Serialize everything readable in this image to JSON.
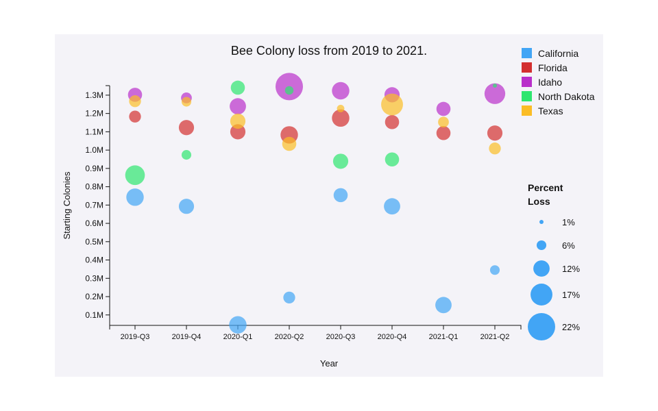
{
  "chart_data": {
    "type": "scatter",
    "subtype": "bubble",
    "title": "Bee Colony loss from 2019 to 2021.",
    "xlabel": "Year",
    "ylabel": "Starting Colonies",
    "categories": [
      "2019-Q3",
      "2019-Q4",
      "2020-Q1",
      "2020-Q2",
      "2020-Q3",
      "2020-Q4",
      "2021-Q1",
      "2021-Q2"
    ],
    "ylim": [
      0.043,
      1.352
    ],
    "yticks": [
      0.1,
      0.2,
      0.3,
      0.4,
      0.5,
      0.6,
      0.7,
      0.8,
      0.9,
      1.0,
      1.1,
      1.2,
      1.3
    ],
    "ytick_labels": [
      "0.1M",
      "0.2M",
      "0.3M",
      "0.4M",
      "0.5M",
      "0.6M",
      "0.7M",
      "0.8M",
      "0.9M",
      "1.0M",
      "1.1M",
      "1.2M",
      "1.3M"
    ],
    "y_unit": "millions of colonies",
    "size_variable": "Percent Loss (%)",
    "size_domain": [
      1,
      22
    ],
    "series": [
      {
        "name": "California",
        "color": "#42a5f5",
        "points": [
          {
            "x": "2019-Q3",
            "y": 0.743,
            "loss": 13
          },
          {
            "x": "2019-Q4",
            "y": 0.693,
            "loss": 11
          },
          {
            "x": "2020-Q1",
            "y": 0.046,
            "loss": 13
          },
          {
            "x": "2020-Q2",
            "y": 0.195,
            "loss": 8
          },
          {
            "x": "2020-Q3",
            "y": 0.754,
            "loss": 10
          },
          {
            "x": "2020-Q4",
            "y": 0.693,
            "loss": 12
          },
          {
            "x": "2021-Q1",
            "y": 0.154,
            "loss": 12
          },
          {
            "x": "2021-Q2",
            "y": 0.345,
            "loss": 6
          }
        ]
      },
      {
        "name": "Florida",
        "color": "#d32f2f",
        "points": [
          {
            "x": "2019-Q3",
            "y": 1.183,
            "loss": 8
          },
          {
            "x": "2019-Q4",
            "y": 1.123,
            "loss": 11
          },
          {
            "x": "2020-Q1",
            "y": 1.1,
            "loss": 11
          },
          {
            "x": "2020-Q2",
            "y": 1.083,
            "loss": 13
          },
          {
            "x": "2020-Q3",
            "y": 1.175,
            "loss": 13
          },
          {
            "x": "2020-Q4",
            "y": 1.153,
            "loss": 10
          },
          {
            "x": "2021-Q1",
            "y": 1.093,
            "loss": 10
          },
          {
            "x": "2021-Q2",
            "y": 1.093,
            "loss": 11
          }
        ]
      },
      {
        "name": "Idaho",
        "color": "#b92fca",
        "points": [
          {
            "x": "2019-Q3",
            "y": 1.302,
            "loss": 10
          },
          {
            "x": "2019-Q4",
            "y": 1.285,
            "loss": 7
          },
          {
            "x": "2020-Q1",
            "y": 1.239,
            "loss": 12
          },
          {
            "x": "2020-Q2",
            "y": 1.347,
            "loss": 22
          },
          {
            "x": "2020-Q3",
            "y": 1.324,
            "loss": 13
          },
          {
            "x": "2020-Q4",
            "y": 1.302,
            "loss": 11
          },
          {
            "x": "2021-Q1",
            "y": 1.225,
            "loss": 10
          },
          {
            "x": "2021-Q2",
            "y": 1.308,
            "loss": 16
          }
        ]
      },
      {
        "name": "North Dakota",
        "color": "#2ee66f",
        "points": [
          {
            "x": "2019-Q3",
            "y": 0.863,
            "loss": 15
          },
          {
            "x": "2019-Q4",
            "y": 0.974,
            "loss": 6
          },
          {
            "x": "2020-Q1",
            "y": 1.341,
            "loss": 10
          },
          {
            "x": "2020-Q2",
            "y": 1.326,
            "loss": 5
          },
          {
            "x": "2020-Q3",
            "y": 0.939,
            "loss": 11
          },
          {
            "x": "2020-Q4",
            "y": 0.949,
            "loss": 10
          },
          {
            "x": "2021-Q2",
            "y": 1.352,
            "loss": 1
          }
        ]
      },
      {
        "name": "Texas",
        "color": "#fbbd26",
        "points": [
          {
            "x": "2019-Q3",
            "y": 1.267,
            "loss": 8
          },
          {
            "x": "2019-Q4",
            "y": 1.264,
            "loss": 6
          },
          {
            "x": "2020-Q1",
            "y": 1.158,
            "loss": 11
          },
          {
            "x": "2020-Q2",
            "y": 1.034,
            "loss": 10
          },
          {
            "x": "2020-Q3",
            "y": 1.227,
            "loss": 4
          },
          {
            "x": "2020-Q4",
            "y": 1.249,
            "loss": 17
          },
          {
            "x": "2021-Q1",
            "y": 1.153,
            "loss": 7
          },
          {
            "x": "2021-Q2",
            "y": 1.009,
            "loss": 8
          }
        ]
      }
    ],
    "legend": {
      "placement": "top-right",
      "entries": [
        "California",
        "Florida",
        "Idaho",
        "North Dakota",
        "Texas"
      ]
    },
    "size_legend": {
      "title_line1": "Percent",
      "title_line2": "Loss",
      "values": [
        1,
        6,
        12,
        17,
        22
      ],
      "labels": [
        "1%",
        "6%",
        "12%",
        "17%",
        "22%"
      ],
      "color": "#42a5f5"
    }
  }
}
